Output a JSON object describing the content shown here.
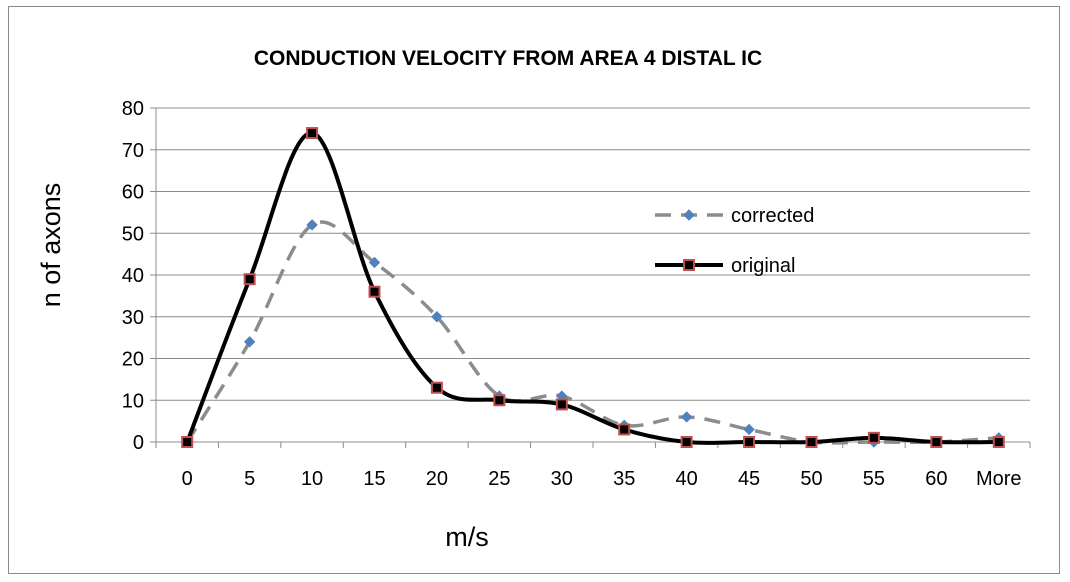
{
  "chart_data": {
    "type": "line",
    "title": "CONDUCTION VELOCITY  FROM AREA 4     DISTAL IC",
    "xlabel": "m/s",
    "ylabel": "n of axons",
    "categories": [
      "0",
      "5",
      "10",
      "15",
      "20",
      "25",
      "30",
      "35",
      "40",
      "45",
      "50",
      "55",
      "60",
      "More"
    ],
    "ylim": [
      0,
      80
    ],
    "yticks": [
      0,
      10,
      20,
      30,
      40,
      50,
      60,
      70,
      80
    ],
    "grid": true,
    "legend_position": "right",
    "series": [
      {
        "name": "corrected",
        "values": [
          0,
          24,
          52,
          43,
          30,
          11,
          11,
          4,
          6,
          3,
          0,
          0,
          0,
          1
        ],
        "color": "#8c8c8c",
        "marker_color": "#4f81bd",
        "style": "dashed",
        "marker": "diamond"
      },
      {
        "name": "original",
        "values": [
          0,
          39,
          74,
          36,
          13,
          10,
          9,
          3,
          0,
          0,
          0,
          1,
          0,
          0
        ],
        "color": "#000000",
        "marker_color": "#c0504d",
        "style": "solid",
        "marker": "square"
      }
    ]
  }
}
